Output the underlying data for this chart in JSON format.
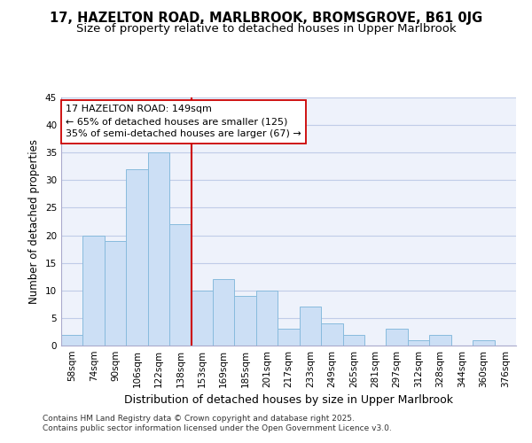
{
  "title": "17, HAZELTON ROAD, MARLBROOK, BROMSGROVE, B61 0JG",
  "subtitle": "Size of property relative to detached houses in Upper Marlbrook",
  "xlabel": "Distribution of detached houses by size in Upper Marlbrook",
  "ylabel": "Number of detached properties",
  "categories": [
    "58sqm",
    "74sqm",
    "90sqm",
    "106sqm",
    "122sqm",
    "138sqm",
    "153sqm",
    "169sqm",
    "185sqm",
    "201sqm",
    "217sqm",
    "233sqm",
    "249sqm",
    "265sqm",
    "281sqm",
    "297sqm",
    "312sqm",
    "328sqm",
    "344sqm",
    "360sqm",
    "376sqm"
  ],
  "values": [
    2,
    20,
    19,
    32,
    35,
    22,
    10,
    12,
    9,
    10,
    3,
    7,
    4,
    2,
    0,
    3,
    1,
    2,
    0,
    1,
    0
  ],
  "bar_color": "#ccdff5",
  "bar_edge_color": "#88bbdd",
  "vline_color": "#cc0000",
  "vline_pos": 5.5,
  "annotation_text": "17 HAZELTON ROAD: 149sqm\n← 65% of detached houses are smaller (125)\n35% of semi-detached houses are larger (67) →",
  "annotation_box_facecolor": "#ffffff",
  "annotation_box_edgecolor": "#cc0000",
  "ylim": [
    0,
    45
  ],
  "yticks": [
    0,
    5,
    10,
    15,
    20,
    25,
    30,
    35,
    40,
    45
  ],
  "background_color": "#eef2fb",
  "grid_color": "#c0cce8",
  "footer_text": "Contains HM Land Registry data © Crown copyright and database right 2025.\nContains public sector information licensed under the Open Government Licence v3.0.",
  "title_fontsize": 10.5,
  "subtitle_fontsize": 9.5,
  "xlabel_fontsize": 9,
  "ylabel_fontsize": 8.5,
  "tick_fontsize": 7.5,
  "annotation_fontsize": 8,
  "footer_fontsize": 6.5
}
